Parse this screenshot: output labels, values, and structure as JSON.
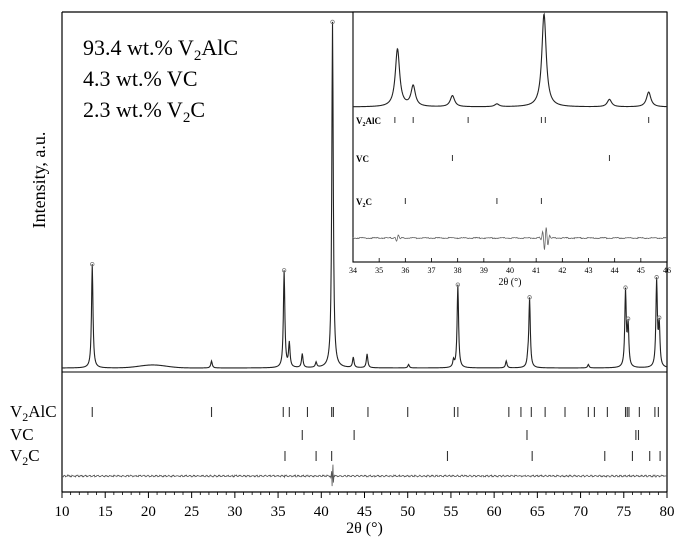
{
  "chart_data": {
    "type": "line",
    "plot_kind": "XRD Rietveld refinement",
    "xlabel": "2θ (°)",
    "ylabel": "Intensity, a.u.",
    "xlim": [
      10,
      80
    ],
    "xticks": [
      10,
      15,
      20,
      25,
      30,
      35,
      40,
      45,
      50,
      55,
      60,
      65,
      70,
      75,
      80
    ],
    "grid": false,
    "composition_text": [
      {
        "value": "93.4",
        "unit": "wt.%",
        "phase_main": "V",
        "phase_sub": "2",
        "phase_rest": "AlC"
      },
      {
        "value": "4.3",
        "unit": "wt.%",
        "phase_main": "VC",
        "phase_sub": "",
        "phase_rest": ""
      },
      {
        "value": "2.3",
        "unit": "wt.%",
        "phase_main": "V",
        "phase_sub": "2",
        "phase_rest": "C"
      }
    ],
    "peaks": [
      {
        "x": 13.5,
        "h": 0.3
      },
      {
        "x": 27.3,
        "h": 0.02
      },
      {
        "x": 35.7,
        "h": 0.28
      },
      {
        "x": 36.3,
        "h": 0.07
      },
      {
        "x": 37.8,
        "h": 0.04
      },
      {
        "x": 39.4,
        "h": 0.015
      },
      {
        "x": 41.3,
        "h": 1.0
      },
      {
        "x": 43.7,
        "h": 0.03
      },
      {
        "x": 45.3,
        "h": 0.04
      },
      {
        "x": 50.1,
        "h": 0.01
      },
      {
        "x": 55.3,
        "h": 0.02
      },
      {
        "x": 55.8,
        "h": 0.24
      },
      {
        "x": 61.4,
        "h": 0.02
      },
      {
        "x": 63.9,
        "h": 0.02
      },
      {
        "x": 64.1,
        "h": 0.2
      },
      {
        "x": 70.9,
        "h": 0.01
      },
      {
        "x": 75.2,
        "h": 0.22
      },
      {
        "x": 75.5,
        "h": 0.12
      },
      {
        "x": 78.8,
        "h": 0.25
      },
      {
        "x": 79.1,
        "h": 0.12
      }
    ],
    "reflections": [
      {
        "main": "V",
        "sub": "2",
        "rest": "AlC",
        "positions": [
          13.5,
          27.3,
          35.6,
          36.3,
          38.4,
          41.2,
          41.4,
          45.4,
          50.0,
          55.4,
          55.8,
          61.7,
          63.1,
          64.3,
          65.9,
          68.2,
          70.9,
          71.6,
          73.1,
          75.2,
          75.4,
          75.6,
          76.8,
          78.6,
          79.0
        ]
      },
      {
        "main": "VC",
        "sub": "",
        "rest": "",
        "positions": [
          37.8,
          43.8,
          63.8,
          76.4,
          76.7
        ]
      },
      {
        "main": "V",
        "sub": "2",
        "rest": "C",
        "positions": [
          35.8,
          39.4,
          41.2,
          54.6,
          64.4,
          72.8,
          76.0,
          78.0,
          79.2
        ]
      }
    ],
    "inset": {
      "xlim": [
        34,
        46
      ],
      "xticks": [
        34,
        35,
        36,
        37,
        38,
        39,
        40,
        41,
        42,
        43,
        44,
        45,
        46
      ],
      "xlabel": "2θ (°)",
      "peaks": [
        {
          "x": 35.7,
          "h": 0.62
        },
        {
          "x": 36.3,
          "h": 0.22
        },
        {
          "x": 37.8,
          "h": 0.12
        },
        {
          "x": 39.5,
          "h": 0.03
        },
        {
          "x": 41.3,
          "h": 1.0
        },
        {
          "x": 43.8,
          "h": 0.08
        },
        {
          "x": 45.3,
          "h": 0.16
        }
      ],
      "reflections": [
        {
          "main": "V",
          "sub": "2",
          "rest": "AlC",
          "positions": [
            35.6,
            36.3,
            38.4,
            41.2,
            41.35,
            45.3
          ]
        },
        {
          "main": "VC",
          "sub": "",
          "rest": "",
          "positions": [
            37.8,
            43.8
          ]
        },
        {
          "main": "V",
          "sub": "2",
          "rest": "C",
          "positions": [
            36.0,
            39.5,
            41.2
          ]
        }
      ]
    }
  }
}
